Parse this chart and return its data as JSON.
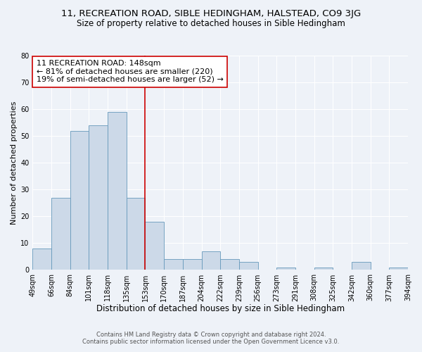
{
  "title": "11, RECREATION ROAD, SIBLE HEDINGHAM, HALSTEAD, CO9 3JG",
  "subtitle": "Size of property relative to detached houses in Sible Hedingham",
  "xlabel": "Distribution of detached houses by size in Sible Hedingham",
  "ylabel": "Number of detached properties",
  "bar_values": [
    8,
    27,
    52,
    54,
    59,
    27,
    18,
    4,
    4,
    7,
    4,
    3,
    0,
    1,
    0,
    1,
    0,
    3,
    0,
    1
  ],
  "bin_labels": [
    "49sqm",
    "66sqm",
    "84sqm",
    "101sqm",
    "118sqm",
    "135sqm",
    "153sqm",
    "170sqm",
    "187sqm",
    "204sqm",
    "222sqm",
    "239sqm",
    "256sqm",
    "273sqm",
    "291sqm",
    "308sqm",
    "325sqm",
    "342sqm",
    "360sqm",
    "377sqm",
    "394sqm"
  ],
  "bar_color": "#ccd9e8",
  "bar_edge_color": "#6699bb",
  "vline_color": "#cc0000",
  "annotation_text": "11 RECREATION ROAD: 148sqm\n← 81% of detached houses are smaller (220)\n19% of semi-detached houses are larger (52) →",
  "annotation_box_color": "#ffffff",
  "annotation_box_edge": "#cc0000",
  "ylim": [
    0,
    80
  ],
  "yticks": [
    0,
    10,
    20,
    30,
    40,
    50,
    60,
    70,
    80
  ],
  "footer": "Contains HM Land Registry data © Crown copyright and database right 2024.\nContains public sector information licensed under the Open Government Licence v3.0.",
  "background_color": "#eef2f8",
  "grid_color": "#ffffff",
  "title_fontsize": 9.5,
  "subtitle_fontsize": 8.5,
  "xlabel_fontsize": 8.5,
  "ylabel_fontsize": 8,
  "tick_fontsize": 7,
  "annotation_fontsize": 8,
  "footer_fontsize": 6
}
